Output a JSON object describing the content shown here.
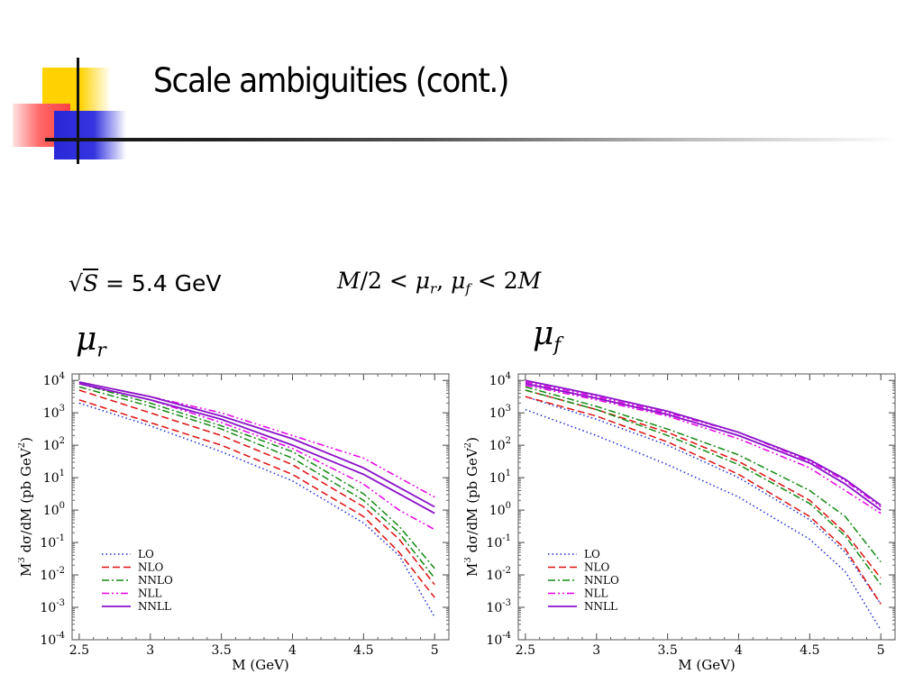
{
  "slide": {
    "title": "Scale ambiguities (cont.)",
    "energy": {
      "sqrt_symbol": "√",
      "var": "S",
      "eq": " = ",
      "value": "5.4 GeV"
    },
    "range": {
      "lhs": "M",
      "frac": "/2 < ",
      "mu": "μ",
      "r": "r",
      "comma": ", ",
      "f": "f",
      "rhs": " < 2",
      "M2": "M"
    },
    "left_label": {
      "mu": "μ",
      "sub": "r"
    },
    "right_label": {
      "mu": "μ",
      "sub": "f"
    }
  },
  "colors": {
    "LO": "#1a2ad0",
    "NLO": "#e01010",
    "NNLO": "#138a13",
    "NLL": "#e600e6",
    "NNLL": "#8a10c8"
  },
  "chart_data": [
    {
      "type": "line",
      "title": "",
      "xlabel": "M (GeV)",
      "ylabel": "M3 dσ/dM (pb GeV2)",
      "xlim": [
        2.45,
        5.1
      ],
      "ylim": [
        -4,
        4.2
      ],
      "yscale": "log",
      "x_ticks": [
        "2.5",
        "3",
        "3.5",
        "4",
        "4.5",
        "5"
      ],
      "y_ticks": [
        "10^-4",
        "10^-3",
        "10^-2",
        "10^-1",
        "10^0",
        "10^1",
        "10^2",
        "10^3",
        "10^4"
      ],
      "legend": [
        "LO",
        "NLO",
        "NNLO",
        "NLL",
        "NNLL"
      ],
      "legend_position": "bottom-left",
      "x": [
        2.5,
        3.0,
        3.5,
        4.0,
        4.5,
        4.75,
        5.0
      ],
      "series": [
        {
          "name": "LO",
          "style": "dotted",
          "band": "upper",
          "log10_values": [
            3.3,
            2.6,
            1.8,
            0.9,
            -0.4,
            -1.4,
            -3.3
          ]
        },
        {
          "name": "NLO",
          "style": "dashed",
          "band": "lower",
          "log10_values": [
            3.4,
            2.7,
            2.0,
            1.1,
            -0.2,
            -1.3,
            -2.7
          ]
        },
        {
          "name": "NLO",
          "style": "dashed",
          "band": "upper",
          "log10_values": [
            3.7,
            3.0,
            2.3,
            1.4,
            0.1,
            -0.9,
            -2.3
          ]
        },
        {
          "name": "NNLO",
          "style": "dashdot",
          "band": "lower",
          "log10_values": [
            3.8,
            3.2,
            2.5,
            1.6,
            0.3,
            -0.7,
            -2.1
          ]
        },
        {
          "name": "NNLO",
          "style": "dashdot",
          "band": "upper",
          "log10_values": [
            3.9,
            3.3,
            2.6,
            1.8,
            0.5,
            -0.5,
            -1.8
          ]
        },
        {
          "name": "NLL",
          "style": "dashdotdot",
          "band": "lower",
          "log10_values": [
            3.9,
            3.4,
            2.7,
            1.9,
            0.8,
            0.0,
            -0.6
          ]
        },
        {
          "name": "NLL",
          "style": "dashdotdot",
          "band": "upper",
          "log10_values": [
            3.95,
            3.5,
            3.0,
            2.3,
            1.6,
            1.0,
            0.4
          ]
        },
        {
          "name": "NNLL",
          "style": "solid",
          "band": "lower",
          "log10_values": [
            3.9,
            3.4,
            2.8,
            2.0,
            1.1,
            0.5,
            -0.1
          ]
        },
        {
          "name": "NNLL",
          "style": "solid",
          "band": "upper",
          "log10_values": [
            3.95,
            3.5,
            2.9,
            2.2,
            1.3,
            0.7,
            0.1
          ]
        }
      ]
    },
    {
      "type": "line",
      "title": "",
      "xlabel": "M (GeV)",
      "ylabel": "M3 dσ/dM (pb GeV2)",
      "xlim": [
        2.45,
        5.1
      ],
      "ylim": [
        -4,
        4.2
      ],
      "yscale": "log",
      "x_ticks": [
        "2.5",
        "3",
        "3.5",
        "4",
        "4.5",
        "5"
      ],
      "y_ticks": [
        "10^-4",
        "10^-3",
        "10^-2",
        "10^-1",
        "10^0",
        "10^1",
        "10^2",
        "10^3",
        "10^4"
      ],
      "legend": [
        "LO",
        "NLO",
        "NNLO",
        "NLL",
        "NNLL"
      ],
      "legend_position": "bottom-left",
      "x": [
        2.5,
        3.0,
        3.5,
        4.0,
        4.5,
        4.75,
        5.0
      ],
      "series": [
        {
          "name": "LO",
          "style": "dotted",
          "band": "lower",
          "log10_values": [
            3.1,
            2.3,
            1.4,
            0.4,
            -0.9,
            -1.9,
            -3.7
          ]
        },
        {
          "name": "LO",
          "style": "dotted",
          "band": "upper",
          "log10_values": [
            3.5,
            2.8,
            2.0,
            1.0,
            -0.3,
            -1.3,
            -2.9
          ]
        },
        {
          "name": "NLO",
          "style": "dashed",
          "band": "lower",
          "log10_values": [
            3.5,
            2.9,
            2.1,
            1.1,
            -0.2,
            -1.2,
            -2.9
          ]
        },
        {
          "name": "NLO",
          "style": "dashed",
          "band": "upper",
          "log10_values": [
            3.7,
            3.1,
            2.4,
            1.5,
            0.3,
            -0.7,
            -2.1
          ]
        },
        {
          "name": "NNLO",
          "style": "dashdot",
          "band": "lower",
          "log10_values": [
            3.7,
            3.1,
            2.3,
            1.4,
            0.2,
            -0.8,
            -2.3
          ]
        },
        {
          "name": "NNLO",
          "style": "dashdot",
          "band": "upper",
          "log10_values": [
            3.8,
            3.2,
            2.5,
            1.7,
            0.6,
            -0.2,
            -1.6
          ]
        },
        {
          "name": "NLL",
          "style": "dashdotdot",
          "band": "lower",
          "log10_values": [
            3.85,
            3.4,
            2.9,
            2.2,
            1.3,
            0.6,
            -0.1
          ]
        },
        {
          "name": "NLL",
          "style": "dashdotdot",
          "band": "upper",
          "log10_values": [
            3.95,
            3.5,
            3.0,
            2.4,
            1.5,
            0.9,
            0.1
          ]
        },
        {
          "name": "NNLL",
          "style": "solid",
          "band": "lower",
          "log10_values": [
            3.9,
            3.45,
            2.95,
            2.3,
            1.45,
            0.8,
            0.0
          ]
        },
        {
          "name": "NNLL",
          "style": "solid",
          "band": "upper",
          "log10_values": [
            4.0,
            3.55,
            3.05,
            2.4,
            1.55,
            0.95,
            0.15
          ]
        }
      ]
    }
  ]
}
